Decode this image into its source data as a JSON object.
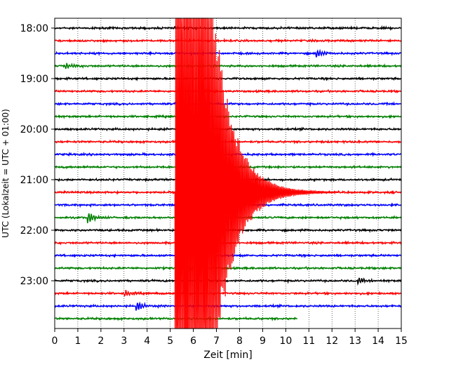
{
  "chart_data": {
    "type": "line",
    "title": "",
    "xlabel": "Zeit  [min]",
    "ylabel": "UTC (Lokalzeit = UTC + 01:00)",
    "xlim": [
      0,
      15
    ],
    "x_ticks": [
      "0",
      "1",
      "2",
      "3",
      "4",
      "5",
      "6",
      "7",
      "8",
      "9",
      "10",
      "11",
      "12",
      "13",
      "14",
      "15"
    ],
    "y_ticks": [
      {
        "label": "18:00",
        "row": 0
      },
      {
        "label": "19:00",
        "row": 4
      },
      {
        "label": "20:00",
        "row": 8
      },
      {
        "label": "21:00",
        "row": 12
      },
      {
        "label": "22:00",
        "row": 16
      },
      {
        "label": "23:00",
        "row": 20
      }
    ],
    "grid": "vertical dotted at each minute",
    "row_minutes": 15,
    "rows": [
      {
        "start": "18:00",
        "color": "#000000",
        "end_min": 15,
        "events": []
      },
      {
        "start": "18:15",
        "color": "#ff0000",
        "end_min": 15,
        "events": []
      },
      {
        "start": "18:30",
        "color": "#0000ff",
        "end_min": 15,
        "events": [
          {
            "t": 11.3,
            "amp": 0.5
          }
        ]
      },
      {
        "start": "18:45",
        "color": "#008000",
        "end_min": 15,
        "events": [
          {
            "t": 0.45,
            "amp": 0.4
          }
        ]
      },
      {
        "start": "19:00",
        "color": "#000000",
        "end_min": 15,
        "events": []
      },
      {
        "start": "19:15",
        "color": "#ff0000",
        "end_min": 15,
        "events": []
      },
      {
        "start": "19:30",
        "color": "#0000ff",
        "end_min": 15,
        "events": []
      },
      {
        "start": "19:45",
        "color": "#008000",
        "end_min": 15,
        "events": []
      },
      {
        "start": "20:00",
        "color": "#000000",
        "end_min": 15,
        "events": []
      },
      {
        "start": "20:15",
        "color": "#ff0000",
        "end_min": 15,
        "events": []
      },
      {
        "start": "20:30",
        "color": "#0000ff",
        "end_min": 15,
        "events": []
      },
      {
        "start": "20:45",
        "color": "#008000",
        "end_min": 15,
        "events": []
      },
      {
        "start": "21:00",
        "color": "#000000",
        "end_min": 15,
        "events": []
      },
      {
        "start": "21:15",
        "color": "#ff0000",
        "end_min": 15,
        "events": []
      },
      {
        "start": "21:30",
        "color": "#0000ff",
        "end_min": 15,
        "events": []
      },
      {
        "start": "21:45",
        "color": "#008000",
        "end_min": 15,
        "events": [
          {
            "t": 1.4,
            "amp": 0.7
          }
        ]
      },
      {
        "start": "22:00",
        "color": "#000000",
        "end_min": 15,
        "events": []
      },
      {
        "start": "22:15",
        "color": "#ff0000",
        "end_min": 15,
        "events": []
      },
      {
        "start": "22:30",
        "color": "#0000ff",
        "end_min": 15,
        "events": []
      },
      {
        "start": "22:45",
        "color": "#008000",
        "end_min": 15,
        "events": [
          {
            "t": 5.7,
            "amp": 0.5
          }
        ]
      },
      {
        "start": "23:00",
        "color": "#000000",
        "end_min": 15,
        "events": [
          {
            "t": 13.1,
            "amp": 0.4
          }
        ]
      },
      {
        "start": "23:15",
        "color": "#ff0000",
        "end_min": 15,
        "events": [
          {
            "t": 3.0,
            "amp": 0.4
          }
        ]
      },
      {
        "start": "23:30",
        "color": "#0000ff",
        "end_min": 15,
        "events": [
          {
            "t": 3.5,
            "amp": 0.6
          }
        ]
      },
      {
        "start": "23:45",
        "color": "#008000",
        "end_min": 10.5,
        "events": []
      }
    ],
    "earthquake": {
      "color": "#ff0000",
      "row": 13,
      "onset_min": 5.2,
      "saturated_until_min": 6.5,
      "coda_end_min": 12.3
    }
  }
}
